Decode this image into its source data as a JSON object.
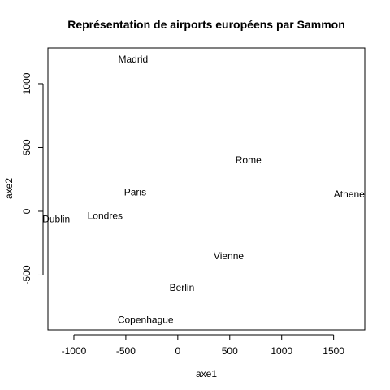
{
  "chart_data": {
    "type": "scatter",
    "title": "Représentation de airports européens par Sammon",
    "xlabel": "axe1",
    "ylabel": "axe2",
    "xlim": [
      -1250,
      1800
    ],
    "ylim": [
      -930,
      1280
    ],
    "x_ticks": [
      -1000,
      -500,
      0,
      500,
      1000,
      1500
    ],
    "x_tick_labels": [
      "-1000",
      "-500",
      "0",
      "500",
      "1000",
      "1500"
    ],
    "y_ticks": [
      -500,
      0,
      500,
      1000
    ],
    "y_tick_labels": [
      "-500",
      "0",
      "500",
      "1000"
    ],
    "grid": false,
    "points": [
      {
        "label": "Madrid",
        "x": -430,
        "y": 1190
      },
      {
        "label": "Rome",
        "x": 680,
        "y": 400
      },
      {
        "label": "Paris",
        "x": -410,
        "y": 150
      },
      {
        "label": "Athene",
        "x": 1650,
        "y": 135
      },
      {
        "label": "Dublin",
        "x": -1170,
        "y": -60
      },
      {
        "label": "Londres",
        "x": -700,
        "y": -35
      },
      {
        "label": "Vienne",
        "x": 490,
        "y": -350
      },
      {
        "label": "Berlin",
        "x": 40,
        "y": -600
      },
      {
        "label": "Copenhague",
        "x": -310,
        "y": -850
      }
    ]
  }
}
